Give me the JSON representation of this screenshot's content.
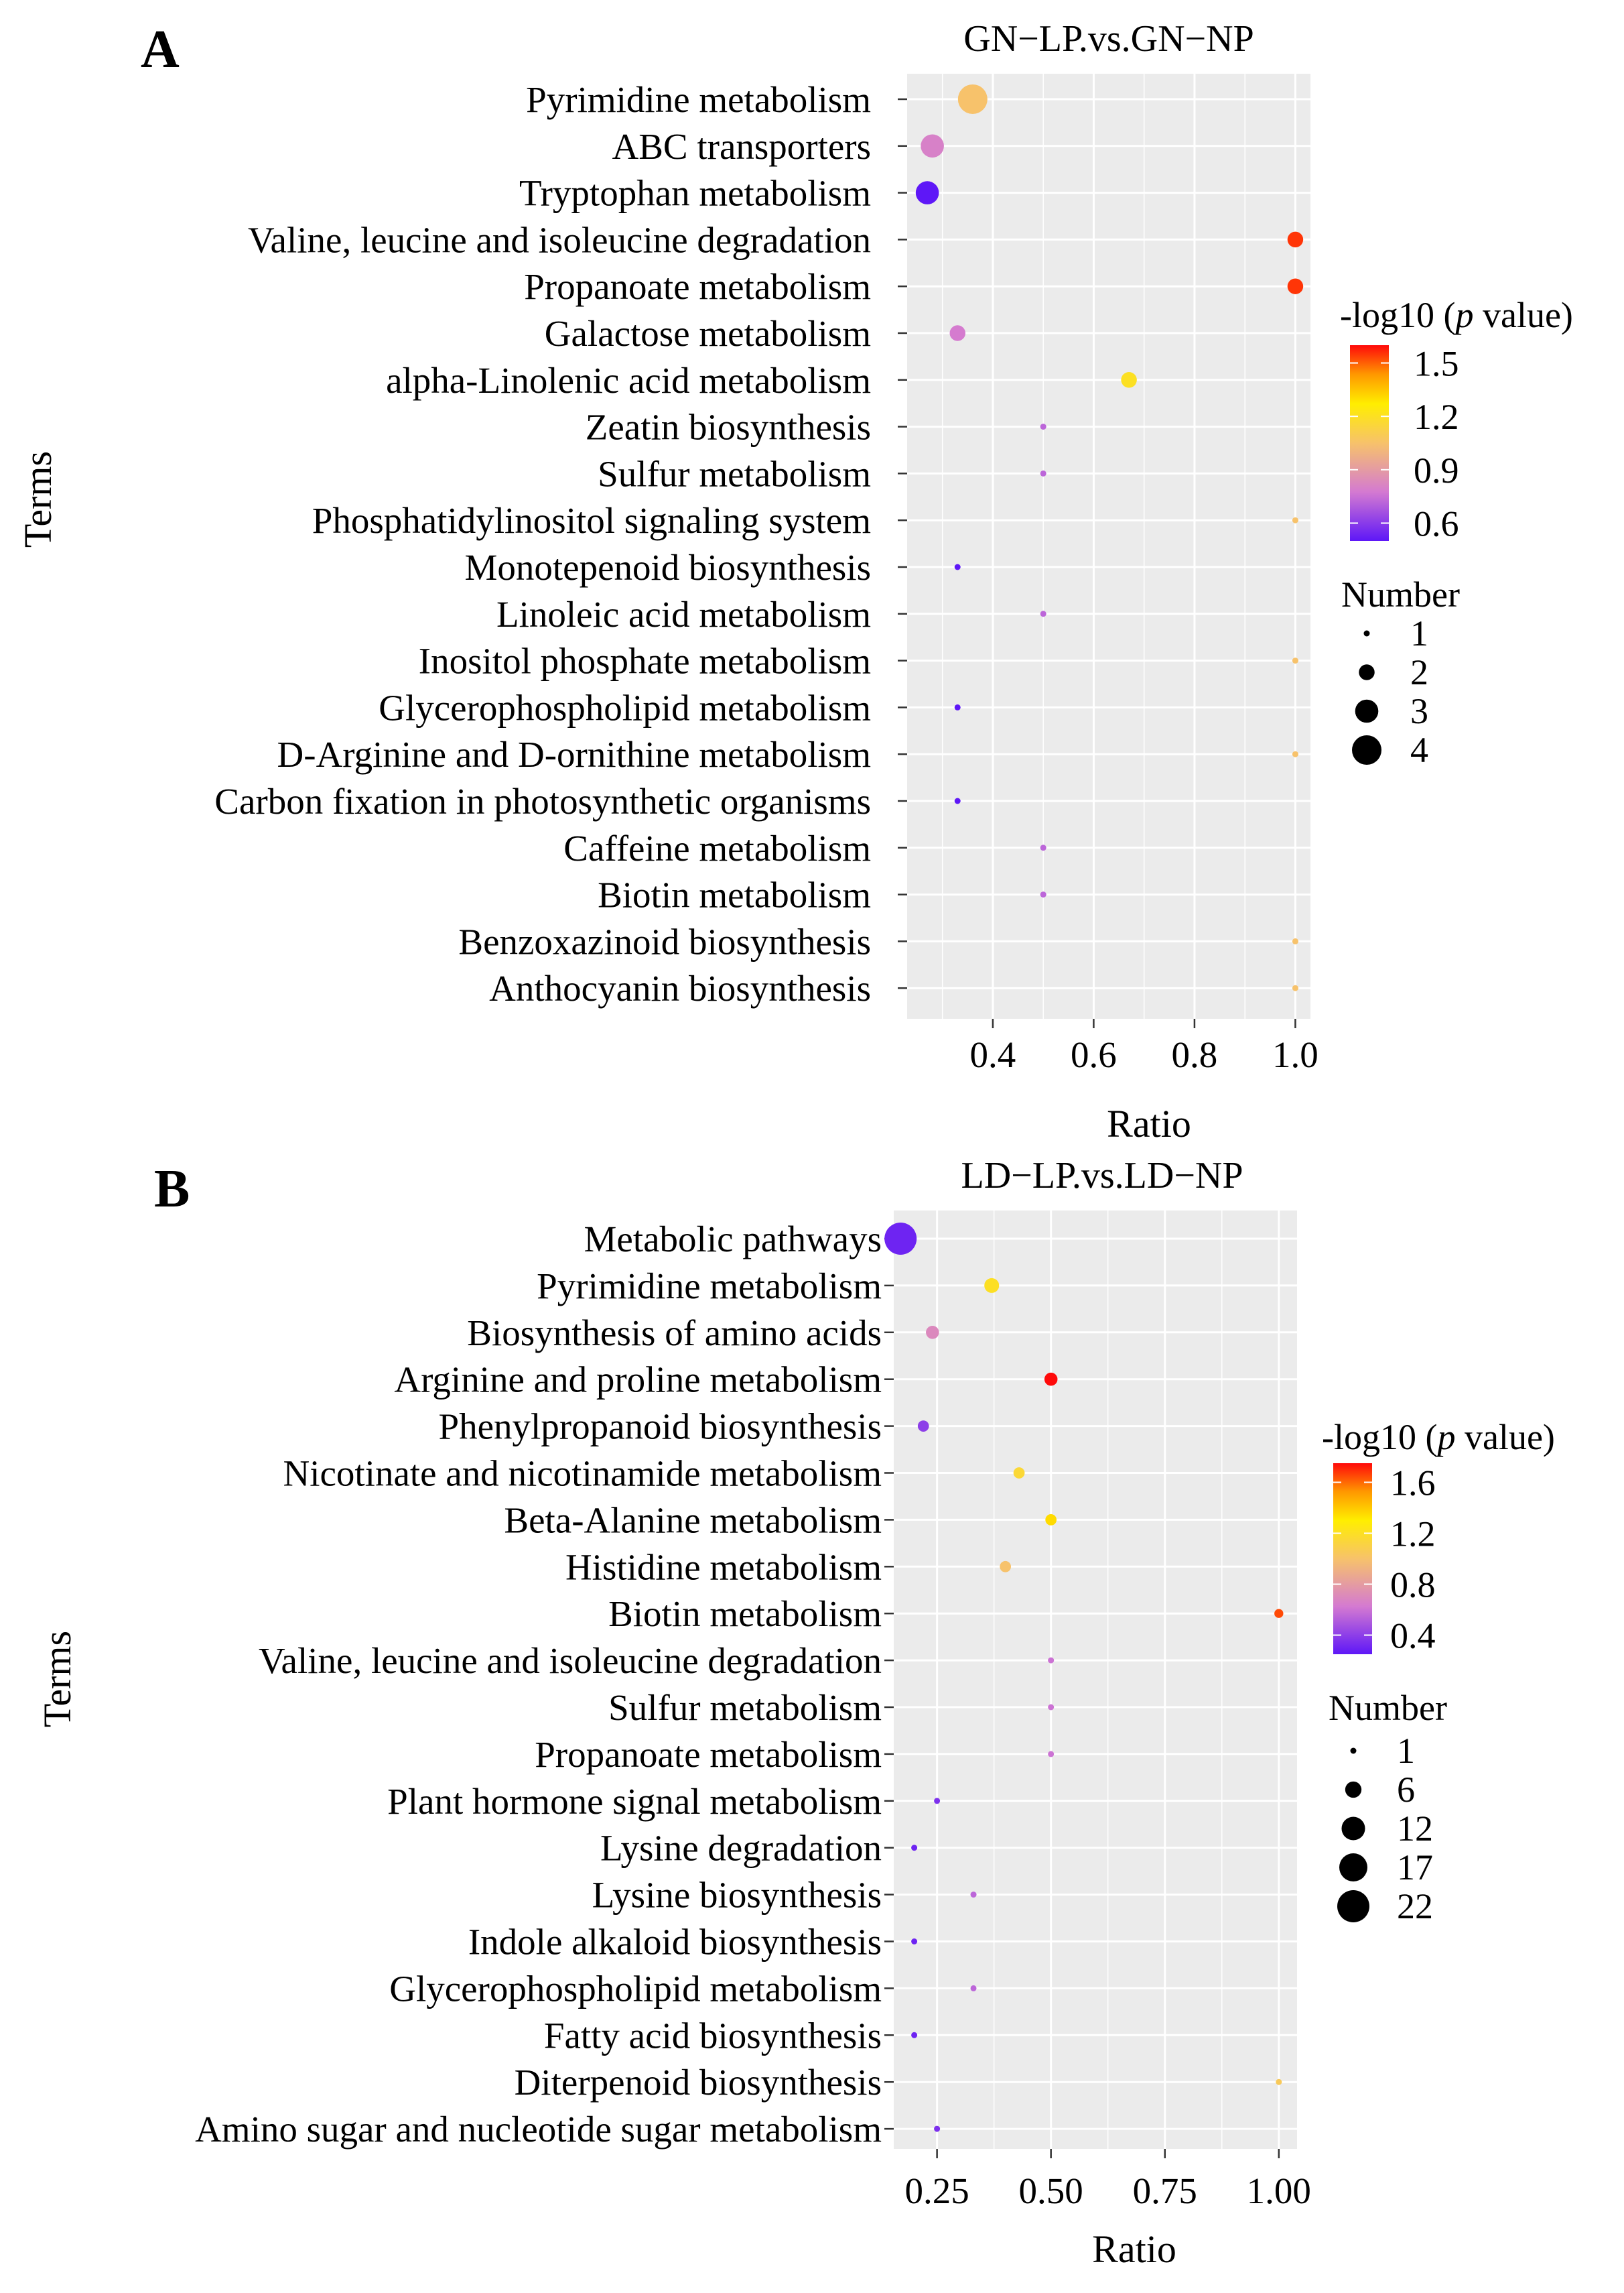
{
  "chart_data": [
    {
      "type": "scatter",
      "panel_letter": "A",
      "title": "GN−LP.vs.GN−NP",
      "xlabel": "Ratio",
      "ylabel": "Terms",
      "xlim": [
        0.23,
        1.03
      ],
      "xticks": [
        "0.4",
        "0.6",
        "0.8",
        "1.0"
      ],
      "xtick_values": [
        0.4,
        0.6,
        0.8,
        1.0
      ],
      "grid": true,
      "color_legend": {
        "title_prefix": "-log10 (",
        "title_italic": "p",
        "title_suffix": " value)",
        "range": [
          0.5,
          1.6
        ],
        "ticks": [
          "1.5",
          "1.2",
          "0.9",
          "0.6"
        ],
        "tick_values": [
          1.5,
          1.2,
          0.9,
          0.6
        ]
      },
      "size_legend": {
        "title": "Number",
        "labels": [
          "1",
          "2",
          "3",
          "4"
        ],
        "values": [
          1,
          2,
          3,
          4
        ]
      },
      "terms": [
        "Pyrimidine metabolism",
        "ABC transporters",
        "Tryptophan metabolism",
        "Valine, leucine and isoleucine degradation",
        "Propanoate metabolism",
        "Galactose metabolism",
        "alpha-Linolenic acid metabolism",
        "Zeatin biosynthesis",
        "Sulfur metabolism",
        "Phosphatidylinositol signaling system",
        "Monotepenoid biosynthesis",
        "Linoleic acid metabolism",
        "Inositol phosphate metabolism",
        "Glycerophospholipid metabolism",
        "D-Arginine and D-ornithine metabolism",
        "Carbon fixation in photosynthetic organisms",
        "Caffeine metabolism",
        "Biotin metabolism",
        "Benzoxazinoid biosynthesis",
        "Anthocyanin biosynthesis"
      ],
      "ratio": [
        0.36,
        0.28,
        0.27,
        1.0,
        1.0,
        0.33,
        0.67,
        0.5,
        0.5,
        1.0,
        0.33,
        0.5,
        1.0,
        0.33,
        1.0,
        0.33,
        0.5,
        0.5,
        1.0,
        1.0
      ],
      "neg_log10_p": [
        1.05,
        0.8,
        0.5,
        1.55,
        1.55,
        0.78,
        1.2,
        0.72,
        0.72,
        1.05,
        0.48,
        0.72,
        1.05,
        0.48,
        1.05,
        0.48,
        0.72,
        0.72,
        1.05,
        1.05
      ],
      "number": [
        4,
        3,
        3,
        2,
        2,
        2,
        2,
        1,
        1,
        1,
        1,
        1,
        1,
        1,
        1,
        1,
        1,
        1,
        1,
        1
      ]
    },
    {
      "type": "scatter",
      "panel_letter": "B",
      "title": "LD−LP.vs.LD−NP",
      "xlabel": "Ratio",
      "ylabel": "Terms",
      "xlim": [
        0.155,
        1.04
      ],
      "xticks": [
        "0.25",
        "0.50",
        "0.75",
        "1.00"
      ],
      "xtick_values": [
        0.25,
        0.5,
        0.75,
        1.0
      ],
      "grid": true,
      "color_legend": {
        "title_prefix": "-log10 (",
        "title_italic": "p",
        "title_suffix": " value)",
        "range": [
          0.25,
          1.75
        ],
        "ticks": [
          "1.6",
          "1.2",
          "0.8",
          "0.4"
        ],
        "tick_values": [
          1.6,
          1.2,
          0.8,
          0.4
        ]
      },
      "size_legend": {
        "title": "Number",
        "labels": [
          "1",
          "6",
          "12",
          "17",
          "22"
        ],
        "values": [
          1,
          6,
          12,
          17,
          22
        ]
      },
      "terms": [
        "Metabolic pathways",
        "Pyrimidine metabolism",
        "Biosynthesis of amino acids",
        "Arginine and proline metabolism",
        "Phenylpropanoid biosynthesis",
        "Nicotinate and nicotinamide metabolism",
        "Beta-Alanine metabolism",
        "Histidine metabolism",
        "Biotin metabolism",
        "Valine, leucine and isoleucine degradation",
        "Sulfur metabolism",
        "Propanoate metabolism",
        "Plant hormone signal metabolism",
        "Lysine degradation",
        "Lysine biosynthesis",
        "Indole alkaloid biosynthesis",
        "Glycerophospholipid metabolism",
        "Fatty acid  biosynthesis",
        "Diterpenoid biosynthesis",
        "Amino sugar and nucleotide sugar metabolism"
      ],
      "ratio": [
        0.17,
        0.37,
        0.24,
        0.5,
        0.22,
        0.43,
        0.5,
        0.4,
        1.0,
        0.5,
        0.5,
        0.5,
        0.25,
        0.2,
        0.33,
        0.2,
        0.33,
        0.2,
        1.0,
        0.25
      ],
      "neg_log10_p": [
        0.3,
        1.2,
        0.7,
        1.75,
        0.4,
        1.15,
        1.35,
        1.0,
        1.65,
        0.6,
        0.6,
        0.6,
        0.35,
        0.3,
        0.55,
        0.3,
        0.55,
        0.3,
        1.05,
        0.35
      ],
      "number": [
        22,
        5,
        4,
        4,
        3,
        3,
        3,
        3,
        2,
        1,
        1,
        1,
        1,
        1,
        1,
        1,
        1,
        1,
        1,
        1
      ]
    }
  ]
}
